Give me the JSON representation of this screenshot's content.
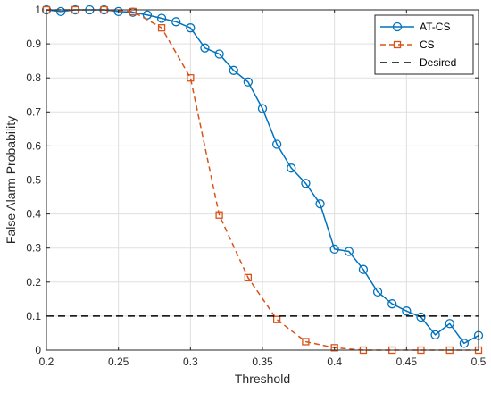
{
  "chart_data": {
    "type": "line",
    "title": "",
    "xlabel": "Threshold",
    "ylabel": "False Alarm Probability",
    "xlim": [
      0.2,
      0.5
    ],
    "ylim": [
      0,
      1
    ],
    "xticks": [
      "0.2",
      "0.25",
      "0.3",
      "0.35",
      "0.4",
      "0.45",
      "0.5"
    ],
    "xtick_values": [
      0.2,
      0.25,
      0.3,
      0.35,
      0.4,
      0.45,
      0.5
    ],
    "yticks": [
      "0",
      "0.1",
      "0.2",
      "0.3",
      "0.4",
      "0.5",
      "0.6",
      "0.7",
      "0.8",
      "0.9",
      "1"
    ],
    "ytick_values": [
      0,
      0.1,
      0.2,
      0.3,
      0.4,
      0.5,
      0.6,
      0.7,
      0.8,
      0.9,
      1
    ],
    "grid": true,
    "legend_position": "top-right",
    "series": [
      {
        "name": "AT-CS",
        "color": "#0072BD",
        "line_style": "solid",
        "marker": "circle",
        "x": [
          0.2,
          0.21,
          0.22,
          0.23,
          0.24,
          0.25,
          0.26,
          0.27,
          0.28,
          0.29,
          0.3,
          0.31,
          0.32,
          0.33,
          0.34,
          0.35,
          0.36,
          0.37,
          0.38,
          0.39,
          0.4,
          0.41,
          0.42,
          0.43,
          0.44,
          0.45,
          0.46,
          0.47,
          0.48,
          0.49,
          0.5
        ],
        "y": [
          1.0,
          0.995,
          1.0,
          1.0,
          1.0,
          0.995,
          0.993,
          0.985,
          0.975,
          0.965,
          0.947,
          0.888,
          0.87,
          0.822,
          0.788,
          0.71,
          0.605,
          0.535,
          0.49,
          0.43,
          0.297,
          0.29,
          0.237,
          0.171,
          0.136,
          0.115,
          0.097,
          0.045,
          0.078,
          0.02,
          0.043
        ]
      },
      {
        "name": "CS",
        "color": "#D95319",
        "line_style": "dashed",
        "marker": "square",
        "x": [
          0.2,
          0.22,
          0.24,
          0.26,
          0.28,
          0.3,
          0.32,
          0.34,
          0.36,
          0.38,
          0.4,
          0.42,
          0.44,
          0.46,
          0.48,
          0.5
        ],
        "y": [
          1.0,
          1.0,
          1.0,
          0.995,
          0.947,
          0.8,
          0.397,
          0.213,
          0.09,
          0.025,
          0.007,
          0.0,
          0.0,
          0.0,
          0.0,
          0.0
        ]
      },
      {
        "name": "Desired",
        "color": "#000000",
        "line_style": "dashed",
        "marker": "none",
        "x": [
          0.2,
          0.5
        ],
        "y": [
          0.1,
          0.1
        ]
      }
    ]
  }
}
